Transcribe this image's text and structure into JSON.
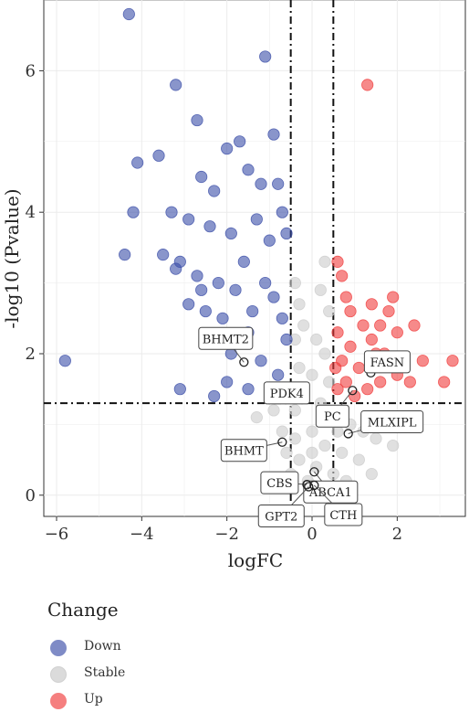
{
  "chart_data": {
    "type": "scatter",
    "xlabel": "logFC",
    "ylabel": "-log10 (Pvalue)",
    "xlim": [
      -6.3,
      3.6
    ],
    "ylim": [
      -0.3,
      7.0
    ],
    "x_ticks": [
      -6,
      -4,
      -2,
      0,
      2
    ],
    "y_ticks": [
      0,
      2,
      4,
      6
    ],
    "grid": true,
    "legend_position": "bottom-left",
    "thresholds": {
      "logFC": [
        -0.5,
        0.5
      ],
      "neg_log10_p": 1.3
    },
    "colors": {
      "Down": "#3b4ea8",
      "Stable": "#cccccc",
      "Up": "#f03c3c"
    },
    "legend": {
      "title": "Change",
      "entries": [
        "Down",
        "Stable",
        "Up"
      ]
    },
    "series": [
      {
        "name": "Down",
        "points": [
          [
            -4.3,
            6.8
          ],
          [
            -1.1,
            6.2
          ],
          [
            -3.2,
            5.8
          ],
          [
            -2.7,
            5.3
          ],
          [
            -0.9,
            5.1
          ],
          [
            -4.1,
            4.7
          ],
          [
            -3.6,
            4.8
          ],
          [
            -1.7,
            5.0
          ],
          [
            -2.0,
            4.9
          ],
          [
            -1.5,
            4.6
          ],
          [
            -2.6,
            4.5
          ],
          [
            -2.3,
            4.3
          ],
          [
            -1.2,
            4.4
          ],
          [
            -0.8,
            4.4
          ],
          [
            -4.2,
            4.0
          ],
          [
            -3.3,
            4.0
          ],
          [
            -2.9,
            3.9
          ],
          [
            -2.4,
            3.8
          ],
          [
            -1.9,
            3.7
          ],
          [
            -1.3,
            3.9
          ],
          [
            -0.7,
            4.0
          ],
          [
            -4.4,
            3.4
          ],
          [
            -3.5,
            3.4
          ],
          [
            -3.1,
            3.3
          ],
          [
            -2.7,
            3.1
          ],
          [
            -2.2,
            3.0
          ],
          [
            -1.8,
            2.9
          ],
          [
            -1.0,
            3.6
          ],
          [
            -0.6,
            3.7
          ],
          [
            -3.2,
            3.2
          ],
          [
            -2.9,
            2.7
          ],
          [
            -2.5,
            2.6
          ],
          [
            -2.1,
            2.5
          ],
          [
            -1.5,
            2.3
          ],
          [
            -0.9,
            2.8
          ],
          [
            -0.6,
            2.2
          ],
          [
            -2.3,
            2.2
          ],
          [
            -1.9,
            2.0
          ],
          [
            -1.2,
            1.9
          ],
          [
            -0.8,
            1.7
          ],
          [
            -2.0,
            1.6
          ],
          [
            -1.5,
            1.5
          ],
          [
            -2.3,
            1.4
          ],
          [
            -5.8,
            1.9
          ],
          [
            -3.1,
            1.5
          ],
          [
            -1.6,
            3.3
          ],
          [
            -1.1,
            3.0
          ],
          [
            -2.6,
            2.9
          ],
          [
            -1.4,
            2.6
          ],
          [
            -0.7,
            2.5
          ]
        ]
      },
      {
        "name": "Up",
        "points": [
          [
            1.3,
            5.8
          ],
          [
            0.6,
            3.3
          ],
          [
            0.7,
            3.1
          ],
          [
            0.8,
            2.8
          ],
          [
            1.4,
            2.7
          ],
          [
            1.8,
            2.6
          ],
          [
            1.9,
            2.8
          ],
          [
            1.2,
            2.4
          ],
          [
            0.6,
            2.3
          ],
          [
            2.0,
            2.3
          ],
          [
            2.4,
            2.4
          ],
          [
            0.9,
            2.1
          ],
          [
            1.5,
            2.0
          ],
          [
            0.7,
            1.9
          ],
          [
            1.1,
            1.8
          ],
          [
            2.0,
            1.7
          ],
          [
            2.3,
            1.6
          ],
          [
            1.6,
            1.6
          ],
          [
            0.8,
            1.6
          ],
          [
            1.3,
            1.5
          ],
          [
            3.3,
            1.9
          ],
          [
            3.1,
            1.6
          ],
          [
            1.0,
            1.4
          ],
          [
            0.6,
            1.5
          ],
          [
            1.7,
            2.0
          ],
          [
            1.4,
            2.2
          ],
          [
            2.6,
            1.9
          ],
          [
            0.9,
            2.6
          ],
          [
            1.6,
            2.4
          ],
          [
            0.55,
            1.8
          ]
        ]
      },
      {
        "name": "Stable",
        "points": [
          [
            -0.4,
            3.0
          ],
          [
            -0.3,
            2.7
          ],
          [
            -0.2,
            2.4
          ],
          [
            0.3,
            3.3
          ],
          [
            0.2,
            2.9
          ],
          [
            0.4,
            2.6
          ],
          [
            -0.4,
            2.2
          ],
          [
            0.1,
            2.2
          ],
          [
            0.3,
            2.0
          ],
          [
            -0.3,
            1.8
          ],
          [
            0.0,
            1.7
          ],
          [
            0.4,
            1.6
          ],
          [
            -0.2,
            1.4
          ],
          [
            0.2,
            1.3
          ],
          [
            -0.4,
            1.2
          ],
          [
            0.5,
            1.1
          ],
          [
            0.9,
            1.0
          ],
          [
            1.2,
            0.9
          ],
          [
            1.5,
            0.8
          ],
          [
            1.9,
            0.7
          ],
          [
            -0.9,
            1.2
          ],
          [
            -1.3,
            1.1
          ],
          [
            -0.7,
            0.9
          ],
          [
            -0.4,
            0.8
          ],
          [
            0.0,
            0.9
          ],
          [
            0.3,
            0.7
          ],
          [
            0.7,
            0.6
          ],
          [
            1.1,
            0.5
          ],
          [
            -0.3,
            0.5
          ],
          [
            0.1,
            0.4
          ],
          [
            0.5,
            0.3
          ],
          [
            -0.1,
            0.2
          ],
          [
            0.2,
            0.1
          ],
          [
            0.8,
            0.2
          ],
          [
            0.4,
            0.05
          ],
          [
            -0.5,
            0.3
          ],
          [
            1.4,
            0.3
          ],
          [
            0.6,
            0.9
          ],
          [
            -0.6,
            0.6
          ],
          [
            0.0,
            0.6
          ]
        ]
      }
    ],
    "highlighted_genes": [
      {
        "label": "BHMT2",
        "x": -1.6,
        "y": 1.88
      },
      {
        "label": "FASN",
        "x": 1.38,
        "y": 1.73
      },
      {
        "label": "PDK4",
        "x": -0.55,
        "y": 1.42
      },
      {
        "label": "PC",
        "x": 0.95,
        "y": 1.48
      },
      {
        "label": "MLXIPL",
        "x": 0.85,
        "y": 0.87
      },
      {
        "label": "BHMT",
        "x": -0.7,
        "y": 0.75
      },
      {
        "label": "ABCA1",
        "x": 0.05,
        "y": 0.33
      },
      {
        "label": "CBS",
        "x": -0.12,
        "y": 0.15
      },
      {
        "label": "GPT2",
        "x": -0.08,
        "y": 0.12
      },
      {
        "label": "CTH",
        "x": 0.05,
        "y": 0.14
      }
    ]
  },
  "legend": {
    "title": "Change",
    "items": [
      {
        "label": "Down",
        "color": "#3b4ea8"
      },
      {
        "label": "Stable",
        "color": "#cccccc"
      },
      {
        "label": "Up",
        "color": "#f03c3c"
      }
    ]
  }
}
